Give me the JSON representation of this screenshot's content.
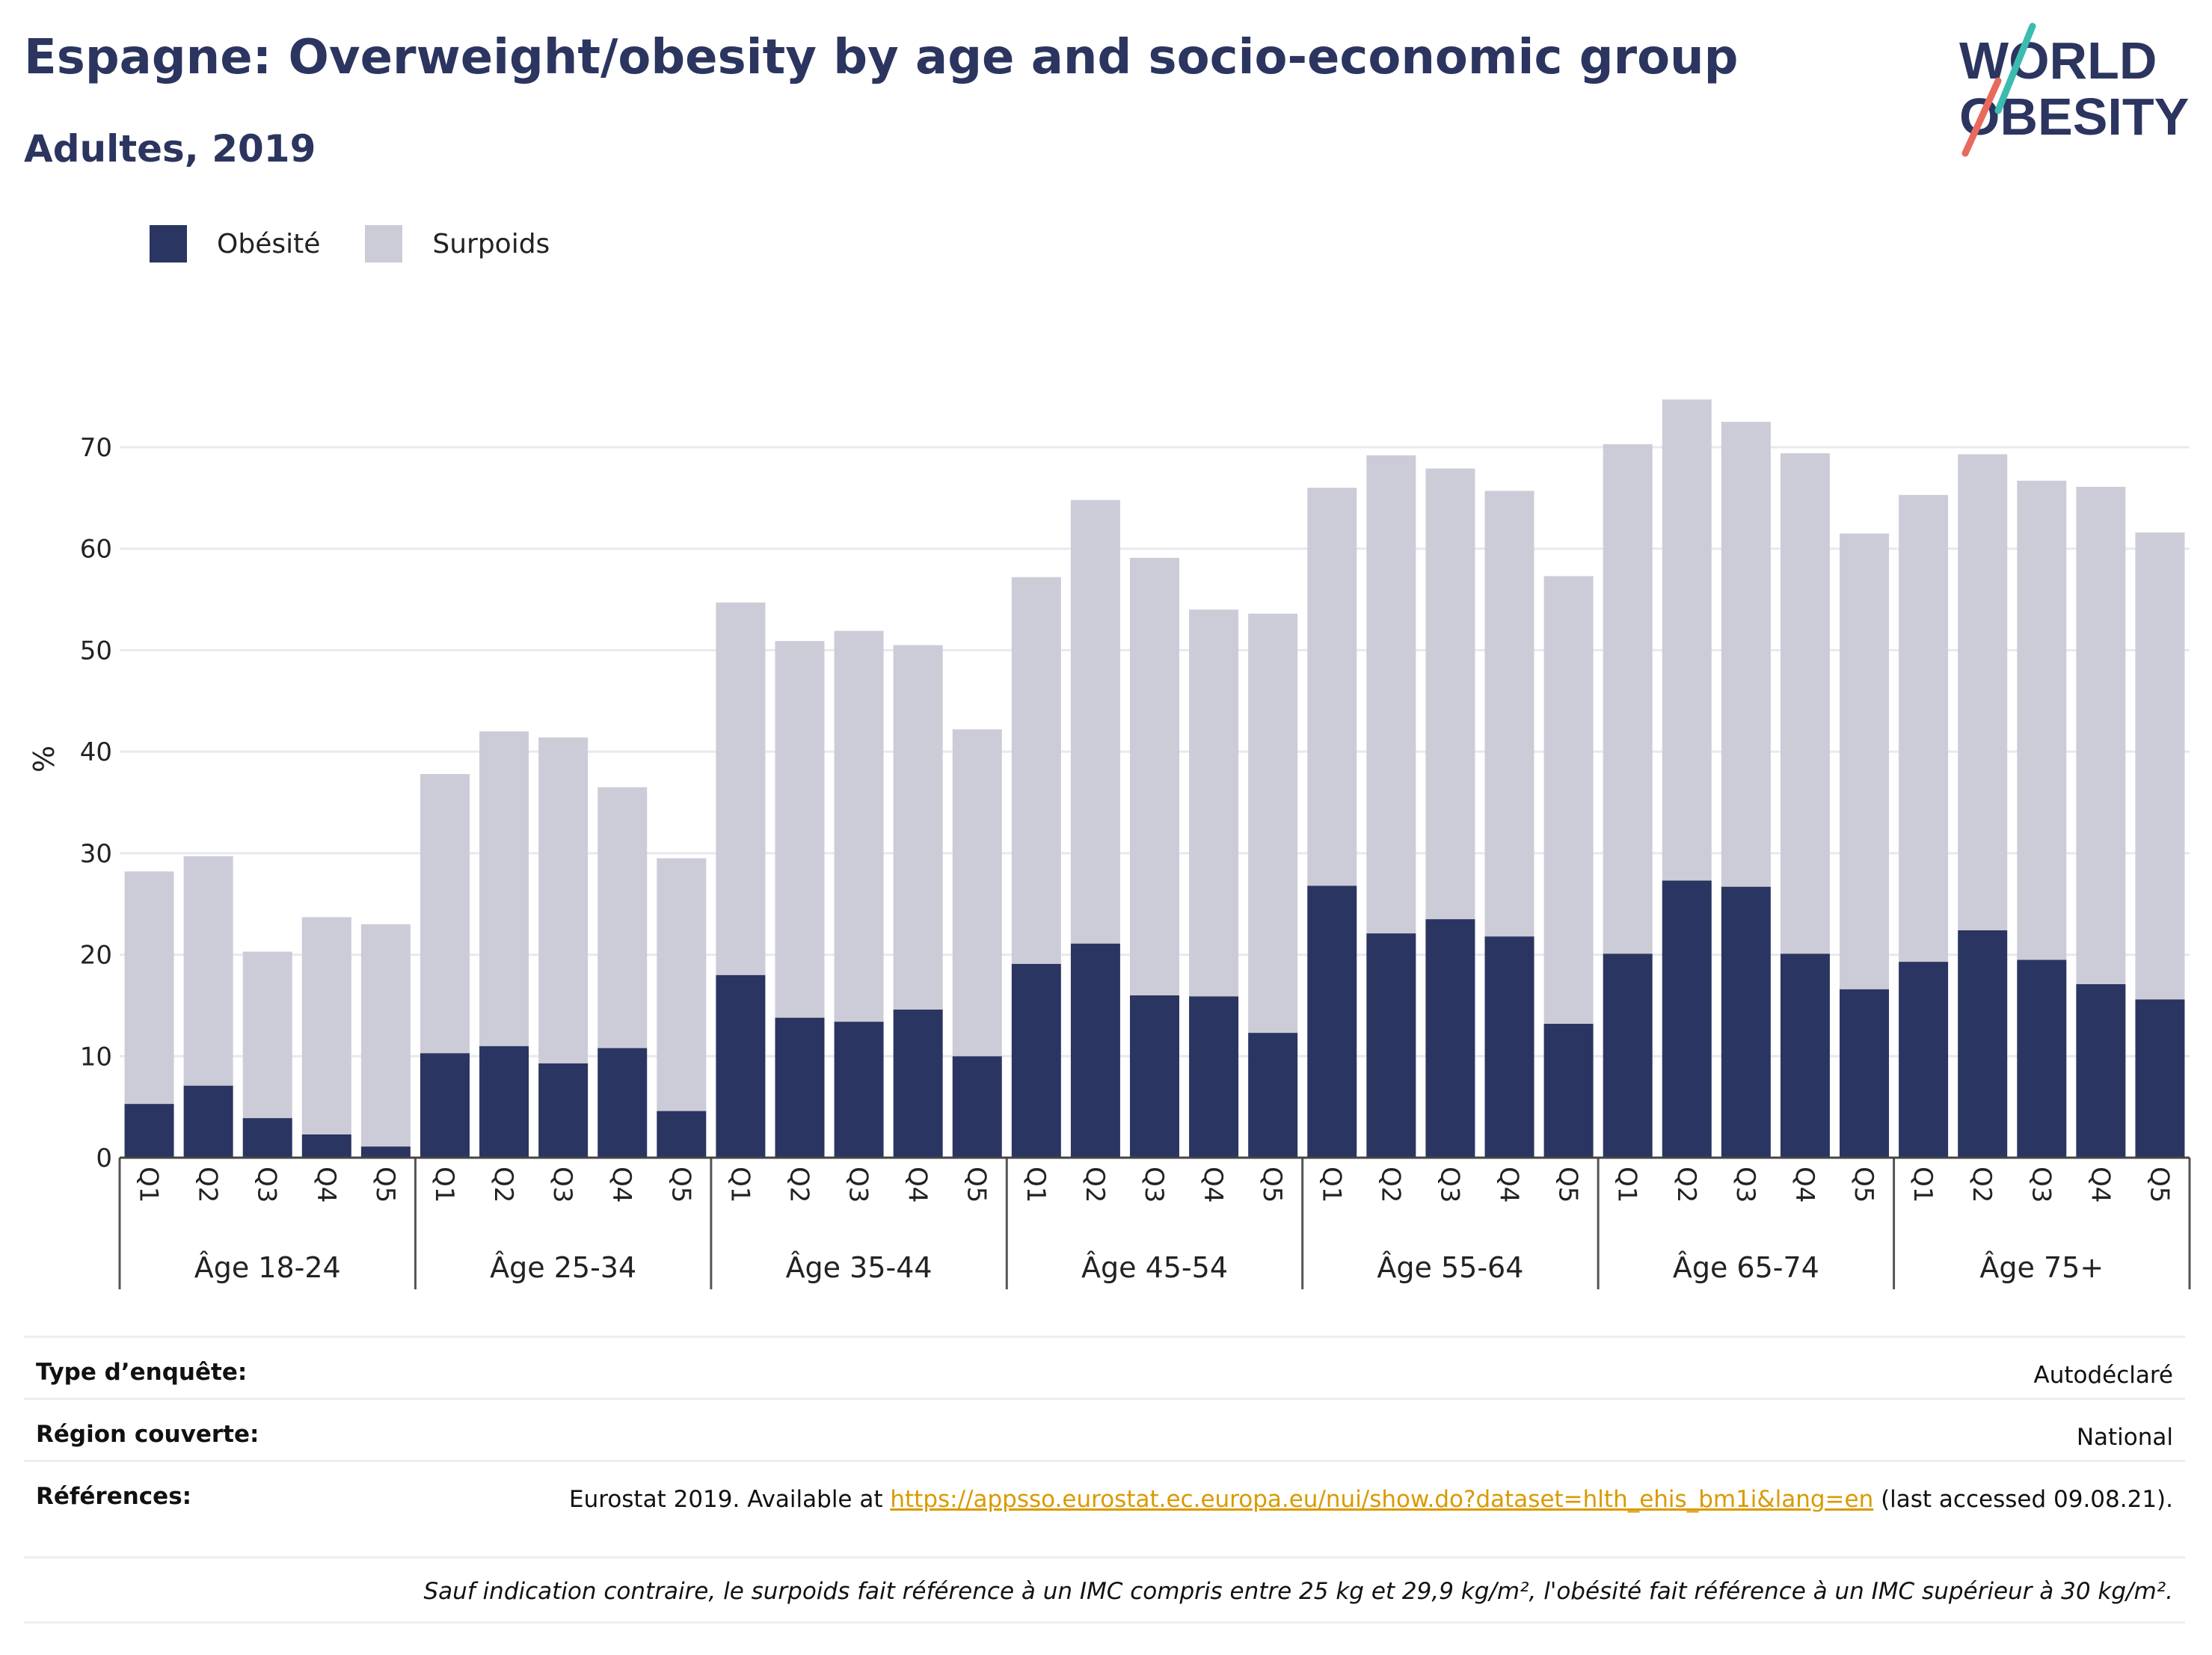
{
  "title": "Espagne: Overweight/obesity by age and socio-economic group",
  "subtitle": "Adultes, 2019",
  "logo": {
    "line1": "WORLD",
    "line2": "OBESITY"
  },
  "colors": {
    "obesity": "#2b3561",
    "overweight": "#cbccd7",
    "accent_teal": "#3cbcb0",
    "accent_red": "#e86a5c"
  },
  "chart_data": {
    "type": "bar",
    "stacked": true,
    "ylabel": "%",
    "ylim": [
      0,
      77
    ],
    "yticks": [
      0,
      10,
      20,
      30,
      40,
      50,
      60,
      70
    ],
    "grid": true,
    "legend_position": "top-left",
    "legend": [
      "Obésité",
      "Surpoids"
    ],
    "groups": [
      "Âge 18-24",
      "Âge 25-34",
      "Âge 35-44",
      "Âge 45-54",
      "Âge 55-64",
      "Âge 65-74",
      "Âge 75+"
    ],
    "categories": [
      "Q1",
      "Q2",
      "Q3",
      "Q4",
      "Q5"
    ],
    "series": [
      {
        "name": "Obésité",
        "values": [
          [
            5.3,
            7.1,
            3.9,
            2.3,
            1.1
          ],
          [
            10.3,
            11.0,
            9.3,
            10.8,
            4.6
          ],
          [
            18.0,
            13.8,
            13.4,
            14.6,
            10.0
          ],
          [
            19.1,
            21.1,
            16.0,
            15.9,
            12.3
          ],
          [
            26.8,
            22.1,
            23.5,
            21.8,
            13.2
          ],
          [
            20.1,
            27.3,
            26.7,
            20.1,
            16.6
          ],
          [
            19.3,
            22.4,
            19.5,
            17.1,
            15.6
          ]
        ]
      },
      {
        "name": "Surpoids",
        "values": [
          [
            22.9,
            22.6,
            16.4,
            21.4,
            21.9
          ],
          [
            27.5,
            31.0,
            32.1,
            25.7,
            24.9
          ],
          [
            36.7,
            37.1,
            38.5,
            35.9,
            32.2
          ],
          [
            38.1,
            43.7,
            43.1,
            38.1,
            41.3
          ],
          [
            39.2,
            47.1,
            44.4,
            43.9,
            44.1
          ],
          [
            50.2,
            47.4,
            45.8,
            49.3,
            44.9
          ],
          [
            46.0,
            46.9,
            47.2,
            49.0,
            46.0
          ]
        ]
      }
    ]
  },
  "info": {
    "survey_type_label": "Type d’enquête:",
    "survey_type_value": "Autodéclaré",
    "region_label": "Région couverte:",
    "region_value": "National",
    "references_label": "Références:",
    "references_prefix": "Eurostat 2019. Available at ",
    "references_link": "https://appsso.eurostat.ec.europa.eu/nui/show.do?dataset=hlth_ehis_bm1i&lang=en",
    "references_suffix": " (last accessed 09.08.21).",
    "note": "Sauf indication contraire, le surpoids fait référence à un IMC compris entre 25 kg et 29,9 kg/m², l'obésité fait référence à un IMC supérieur à 30 kg/m²."
  }
}
